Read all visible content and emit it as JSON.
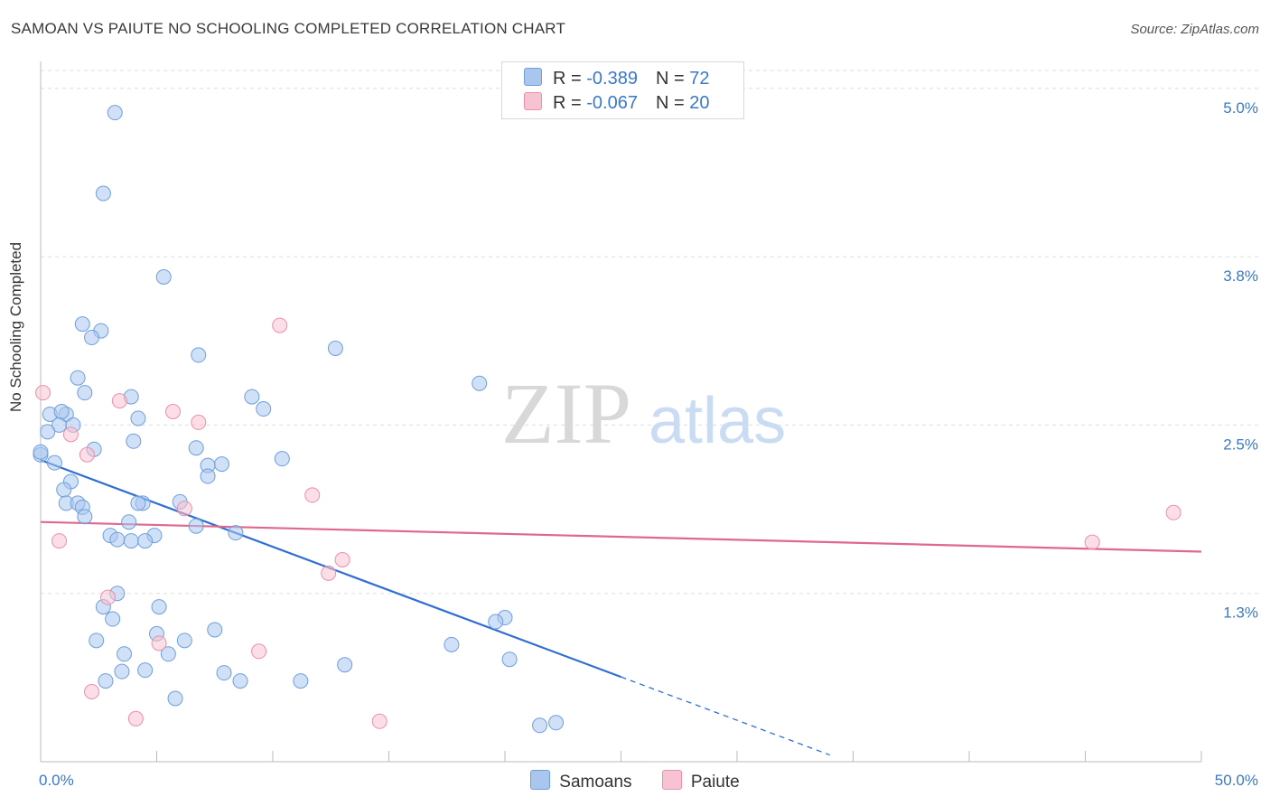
{
  "title": "SAMOAN VS PAIUTE NO SCHOOLING COMPLETED CORRELATION CHART",
  "source": "Source: ZipAtlas.com",
  "watermark": {
    "zip": "ZIP",
    "atlas": "atlas"
  },
  "legend": {
    "rows": [
      {
        "r_label": "R = ",
        "r_value": "-0.389",
        "n_label": "N = ",
        "n_value": "72",
        "color": "#a9c7ee",
        "border": "#6e9fdc"
      },
      {
        "r_label": "R = ",
        "r_value": "-0.067",
        "n_label": "N = ",
        "n_value": "20",
        "color": "#f7c3d2",
        "border": "#ec8fab"
      }
    ]
  },
  "bottom_legend": [
    {
      "label": "Samoans",
      "color": "#a9c7ee",
      "border": "#6e9fdc"
    },
    {
      "label": "Paiute",
      "color": "#f7c3d2",
      "border": "#ec8fab"
    }
  ],
  "chart_data": {
    "type": "scatter",
    "title": "SAMOAN VS PAIUTE NO SCHOOLING COMPLETED CORRELATION CHART",
    "xlabel": "",
    "ylabel": "No Schooling Completed",
    "xlim": [
      0,
      50
    ],
    "ylim": [
      0,
      5.2
    ],
    "x_tick_labels": [
      "0.0%",
      "50.0%"
    ],
    "y_ticks": [
      1.25,
      2.5,
      3.75,
      5.0
    ],
    "y_tick_labels": [
      "1.3%",
      "2.5%",
      "3.8%",
      "5.0%"
    ],
    "series": [
      {
        "name": "Samoans",
        "color": "#6e9fdc",
        "fill": "#a9c7ee",
        "trend": {
          "x0": 0,
          "y0": 2.24,
          "x1": 25,
          "y1": 0.63,
          "dash_to_x": 34,
          "dash_to_y": 0.05
        },
        "points": [
          [
            3.2,
            4.82
          ],
          [
            2.7,
            4.22
          ],
          [
            5.3,
            3.6
          ],
          [
            1.8,
            3.25
          ],
          [
            2.6,
            3.2
          ],
          [
            2.2,
            3.15
          ],
          [
            6.8,
            3.02
          ],
          [
            12.7,
            3.07
          ],
          [
            1.6,
            2.85
          ],
          [
            1.9,
            2.74
          ],
          [
            3.9,
            2.71
          ],
          [
            9.1,
            2.71
          ],
          [
            18.9,
            2.81
          ],
          [
            9.6,
            2.62
          ],
          [
            0.4,
            2.58
          ],
          [
            1.1,
            2.58
          ],
          [
            0.8,
            2.5
          ],
          [
            1.4,
            2.5
          ],
          [
            0.3,
            2.45
          ],
          [
            4.2,
            2.55
          ],
          [
            4.0,
            2.38
          ],
          [
            2.3,
            2.32
          ],
          [
            6.7,
            2.33
          ],
          [
            10.4,
            2.25
          ],
          [
            0.0,
            2.28
          ],
          [
            0.6,
            2.22
          ],
          [
            7.8,
            2.21
          ],
          [
            7.2,
            2.2
          ],
          [
            7.2,
            2.12
          ],
          [
            1.3,
            2.08
          ],
          [
            1.0,
            2.02
          ],
          [
            1.1,
            1.92
          ],
          [
            1.6,
            1.92
          ],
          [
            4.4,
            1.92
          ],
          [
            4.2,
            1.92
          ],
          [
            6.0,
            1.93
          ],
          [
            1.8,
            1.89
          ],
          [
            1.9,
            1.82
          ],
          [
            3.8,
            1.78
          ],
          [
            6.7,
            1.75
          ],
          [
            3.0,
            1.68
          ],
          [
            3.3,
            1.65
          ],
          [
            4.9,
            1.68
          ],
          [
            3.9,
            1.64
          ],
          [
            8.4,
            1.7
          ],
          [
            4.5,
            1.64
          ],
          [
            3.3,
            1.25
          ],
          [
            2.7,
            1.15
          ],
          [
            5.1,
            1.15
          ],
          [
            3.1,
            1.06
          ],
          [
            20.0,
            1.07
          ],
          [
            19.6,
            1.04
          ],
          [
            5.0,
            0.95
          ],
          [
            7.5,
            0.98
          ],
          [
            2.4,
            0.9
          ],
          [
            6.2,
            0.9
          ],
          [
            17.7,
            0.87
          ],
          [
            3.6,
            0.8
          ],
          [
            5.5,
            0.8
          ],
          [
            13.1,
            0.72
          ],
          [
            20.2,
            0.76
          ],
          [
            3.5,
            0.67
          ],
          [
            4.5,
            0.68
          ],
          [
            7.9,
            0.66
          ],
          [
            2.8,
            0.6
          ],
          [
            8.6,
            0.6
          ],
          [
            11.2,
            0.6
          ],
          [
            5.8,
            0.47
          ],
          [
            21.5,
            0.27
          ],
          [
            22.2,
            0.29
          ],
          [
            0.0,
            2.3
          ],
          [
            0.9,
            2.6
          ]
        ]
      },
      {
        "name": "Paiute",
        "color": "#ec8fab",
        "fill": "#f7c3d2",
        "trend": {
          "x0": 0,
          "y0": 1.78,
          "x1": 50,
          "y1": 1.56
        },
        "points": [
          [
            0.1,
            2.74
          ],
          [
            3.4,
            2.68
          ],
          [
            5.7,
            2.6
          ],
          [
            6.8,
            2.52
          ],
          [
            1.3,
            2.43
          ],
          [
            2.0,
            2.28
          ],
          [
            10.3,
            3.24
          ],
          [
            11.7,
            1.98
          ],
          [
            6.2,
            1.88
          ],
          [
            0.8,
            1.64
          ],
          [
            13.0,
            1.5
          ],
          [
            12.4,
            1.4
          ],
          [
            2.9,
            1.22
          ],
          [
            5.1,
            0.88
          ],
          [
            9.4,
            0.82
          ],
          [
            2.2,
            0.52
          ],
          [
            4.1,
            0.32
          ],
          [
            14.6,
            0.3
          ],
          [
            45.3,
            1.63
          ],
          [
            48.8,
            1.85
          ]
        ]
      }
    ]
  }
}
